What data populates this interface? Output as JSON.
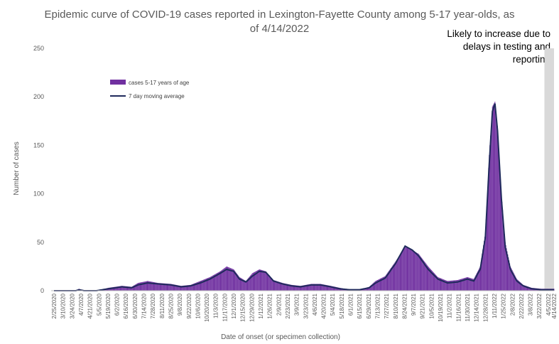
{
  "chart_data": {
    "type": "bar",
    "title": "Epidemic curve of COVID-19 cases reported in Lexington-Fayette County among 5-17 year-olds, as of 4/14/2022",
    "title_lines": [
      "Epidemic curve of COVID-19 cases reported in Lexington-Fayette County among 5-17 year-olds, as",
      "of 4/14/2022"
    ],
    "annotation_lines": [
      "Likely to increase due to",
      "delays in testing and",
      "reporting"
    ],
    "shaded_region": {
      "start": "3/30/2022",
      "end": "4/14/2022"
    },
    "xlabel": "Date of onset (or specimen collection)",
    "ylabel": "Number of cases",
    "ylim": [
      0,
      250
    ],
    "yticks": [
      0,
      50,
      100,
      150,
      200,
      250
    ],
    "xlim": [
      "2/25/2020",
      "4/14/2022"
    ],
    "x_tick_labels": [
      "2/25/2020",
      "3/10/2020",
      "3/24/2020",
      "4/7/2020",
      "4/21/2020",
      "5/5/2020",
      "5/19/2020",
      "6/2/2020",
      "6/16/2020",
      "6/30/2020",
      "7/14/2020",
      "7/28/2020",
      "8/11/2020",
      "8/25/2020",
      "9/8/2020",
      "9/22/2020",
      "10/6/2020",
      "10/20/2020",
      "11/3/2020",
      "11/17/2020",
      "12/1/2020",
      "12/15/2020",
      "12/29/2020",
      "1/12/2021",
      "1/26/2021",
      "2/9/2021",
      "2/23/2021",
      "3/9/2021",
      "3/23/2021",
      "4/6/2021",
      "4/20/2021",
      "5/4/2021",
      "5/18/2021",
      "6/1/2021",
      "6/15/2021",
      "6/29/2021",
      "7/13/2021",
      "7/27/2021",
      "8/10/2021",
      "8/24/2021",
      "9/7/2021",
      "9/21/2021",
      "10/5/2021",
      "10/19/2021",
      "11/2/2021",
      "11/16/2021",
      "11/30/2021",
      "12/14/2021",
      "12/28/2021",
      "1/11/2022",
      "1/25/2022",
      "2/8/2022",
      "2/22/2022",
      "3/8/2022",
      "3/22/2022",
      "4/5/2022",
      "4/14/2022"
    ],
    "grid": false,
    "legend_position": "top-left",
    "bar_color": "#7030a0",
    "line_color": "#1f2a5c",
    "shade_color": "#d9d9d9",
    "series": [
      {
        "name": "cases 5-17 years of age",
        "type": "bar",
        "points": [
          [
            "2/25/2020",
            0
          ],
          [
            "3/30/2020",
            0
          ],
          [
            "4/4/2020",
            2
          ],
          [
            "4/10/2020",
            0
          ],
          [
            "5/1/2020",
            0
          ],
          [
            "5/20/2020",
            3
          ],
          [
            "6/10/2020",
            5
          ],
          [
            "6/25/2020",
            4
          ],
          [
            "7/5/2020",
            8
          ],
          [
            "7/20/2020",
            10
          ],
          [
            "8/5/2020",
            8
          ],
          [
            "8/25/2020",
            7
          ],
          [
            "9/10/2020",
            5
          ],
          [
            "9/25/2020",
            6
          ],
          [
            "10/10/2020",
            10
          ],
          [
            "10/25/2020",
            14
          ],
          [
            "11/10/2020",
            20
          ],
          [
            "11/20/2020",
            25
          ],
          [
            "12/1/2020",
            22
          ],
          [
            "12/10/2020",
            14
          ],
          [
            "12/20/2020",
            10
          ],
          [
            "12/30/2020",
            18
          ],
          [
            "1/10/2021",
            22
          ],
          [
            "1/20/2021",
            20
          ],
          [
            "2/1/2021",
            11
          ],
          [
            "2/15/2021",
            8
          ],
          [
            "3/1/2021",
            6
          ],
          [
            "3/15/2021",
            5
          ],
          [
            "4/1/2021",
            7
          ],
          [
            "4/15/2021",
            7
          ],
          [
            "5/1/2021",
            5
          ],
          [
            "5/15/2021",
            3
          ],
          [
            "5/30/2021",
            1
          ],
          [
            "6/15/2021",
            1
          ],
          [
            "6/30/2021",
            4
          ],
          [
            "7/10/2021",
            10
          ],
          [
            "7/25/2021",
            15
          ],
          [
            "8/10/2021",
            30
          ],
          [
            "8/25/2021",
            45
          ],
          [
            "9/5/2021",
            42
          ],
          [
            "9/15/2021",
            38
          ],
          [
            "9/30/2021",
            25
          ],
          [
            "10/15/2021",
            14
          ],
          [
            "10/30/2021",
            10
          ],
          [
            "11/15/2021",
            11
          ],
          [
            "11/30/2021",
            14
          ],
          [
            "12/10/2021",
            12
          ],
          [
            "12/20/2021",
            25
          ],
          [
            "12/28/2021",
            60
          ],
          [
            "1/3/2022",
            140
          ],
          [
            "1/8/2022",
            190
          ],
          [
            "1/12/2022",
            195
          ],
          [
            "1/16/2022",
            170
          ],
          [
            "1/22/2022",
            100
          ],
          [
            "1/28/2022",
            50
          ],
          [
            "2/5/2022",
            25
          ],
          [
            "2/15/2022",
            12
          ],
          [
            "2/25/2022",
            6
          ],
          [
            "3/10/2022",
            3
          ],
          [
            "3/25/2022",
            2
          ],
          [
            "4/14/2022",
            2
          ]
        ]
      },
      {
        "name": "7 day moving average",
        "type": "line",
        "points": [
          [
            "2/25/2020",
            0
          ],
          [
            "3/30/2020",
            0
          ],
          [
            "4/4/2020",
            1
          ],
          [
            "4/12/2020",
            0
          ],
          [
            "5/1/2020",
            0
          ],
          [
            "5/20/2020",
            2
          ],
          [
            "6/10/2020",
            4
          ],
          [
            "6/25/2020",
            3
          ],
          [
            "7/5/2020",
            6
          ],
          [
            "7/20/2020",
            8
          ],
          [
            "8/5/2020",
            7
          ],
          [
            "8/25/2020",
            6
          ],
          [
            "9/10/2020",
            4
          ],
          [
            "9/25/2020",
            5
          ],
          [
            "10/10/2020",
            8
          ],
          [
            "10/25/2020",
            12
          ],
          [
            "11/10/2020",
            18
          ],
          [
            "11/20/2020",
            22
          ],
          [
            "12/1/2020",
            20
          ],
          [
            "12/10/2020",
            12
          ],
          [
            "12/20/2020",
            9
          ],
          [
            "12/30/2020",
            15
          ],
          [
            "1/10/2021",
            20
          ],
          [
            "1/20/2021",
            19
          ],
          [
            "2/1/2021",
            10
          ],
          [
            "2/15/2021",
            7
          ],
          [
            "3/1/2021",
            5
          ],
          [
            "3/15/2021",
            4
          ],
          [
            "4/1/2021",
            6
          ],
          [
            "4/15/2021",
            6
          ],
          [
            "5/1/2021",
            4
          ],
          [
            "5/15/2021",
            2
          ],
          [
            "5/30/2021",
            1
          ],
          [
            "6/15/2021",
            1
          ],
          [
            "6/30/2021",
            3
          ],
          [
            "7/10/2021",
            8
          ],
          [
            "7/25/2021",
            13
          ],
          [
            "8/10/2021",
            28
          ],
          [
            "8/25/2021",
            46
          ],
          [
            "9/5/2021",
            42
          ],
          [
            "9/15/2021",
            36
          ],
          [
            "9/30/2021",
            22
          ],
          [
            "10/15/2021",
            12
          ],
          [
            "10/30/2021",
            8
          ],
          [
            "11/15/2021",
            9
          ],
          [
            "11/30/2021",
            12
          ],
          [
            "12/10/2021",
            10
          ],
          [
            "12/20/2021",
            22
          ],
          [
            "12/28/2021",
            55
          ],
          [
            "1/3/2022",
            130
          ],
          [
            "1/8/2022",
            185
          ],
          [
            "1/12/2022",
            193
          ],
          [
            "1/16/2022",
            165
          ],
          [
            "1/22/2022",
            95
          ],
          [
            "1/28/2022",
            45
          ],
          [
            "2/5/2022",
            22
          ],
          [
            "2/15/2022",
            10
          ],
          [
            "2/25/2022",
            5
          ],
          [
            "3/10/2022",
            2
          ],
          [
            "3/25/2022",
            1
          ],
          [
            "4/14/2022",
            1
          ]
        ]
      }
    ]
  }
}
